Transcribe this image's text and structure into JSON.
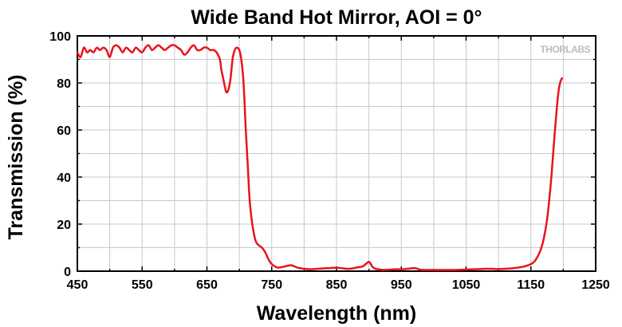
{
  "chart_data": {
    "type": "line",
    "title": "Wide Band Hot Mirror, AOI = 0°",
    "xlabel": "Wavelength (nm)",
    "ylabel": "Transmission (%)",
    "xlim": [
      450,
      1250
    ],
    "ylim": [
      0,
      100
    ],
    "xticks": [
      450,
      550,
      650,
      750,
      850,
      950,
      1050,
      1150,
      1250
    ],
    "yticks": [
      0,
      20,
      40,
      60,
      80,
      100
    ],
    "grid": true,
    "watermark": "THORLABS",
    "colors": {
      "line": "#e8141b",
      "grid": "#c8c8c8",
      "axis": "#000000"
    },
    "series": [
      {
        "x": [
          450,
          455,
          460,
          465,
          470,
          475,
          480,
          485,
          490,
          495,
          500,
          505,
          510,
          515,
          520,
          525,
          530,
          535,
          540,
          545,
          550,
          555,
          560,
          565,
          570,
          575,
          580,
          585,
          590,
          595,
          600,
          605,
          610,
          615,
          620,
          625,
          630,
          635,
          640,
          645,
          650,
          655,
          660,
          665,
          670,
          672,
          675,
          678,
          680,
          683,
          686,
          688,
          690,
          693,
          696,
          700,
          703,
          706,
          708,
          710,
          713,
          716,
          720,
          725,
          730,
          735,
          740,
          745,
          750,
          755,
          760,
          770,
          780,
          790,
          800,
          810,
          820,
          830,
          840,
          850,
          860,
          870,
          880,
          890,
          895,
          900,
          903,
          905,
          910,
          915,
          920,
          930,
          940,
          950,
          960,
          970,
          975,
          980,
          990,
          1000,
          1010,
          1020,
          1030,
          1040,
          1050,
          1060,
          1070,
          1080,
          1090,
          1100,
          1110,
          1120,
          1130,
          1140,
          1150,
          1155,
          1160,
          1165,
          1170,
          1175,
          1180,
          1183,
          1186,
          1189,
          1192,
          1195,
          1198
        ],
        "y": [
          93,
          91,
          95,
          93,
          94,
          93,
          95,
          94,
          95,
          94,
          91,
          95,
          96,
          95,
          93,
          95,
          94,
          93,
          95,
          94,
          93,
          95,
          96,
          94,
          95,
          96,
          95,
          94,
          95,
          96,
          96,
          95,
          94,
          92,
          93,
          95,
          96,
          94,
          94,
          95,
          95,
          94,
          94,
          93,
          90,
          86,
          82,
          78,
          76,
          77,
          81,
          86,
          91,
          94,
          95,
          94,
          90,
          82,
          72,
          60,
          45,
          30,
          20,
          13,
          11,
          10,
          8,
          5,
          3,
          2,
          1.5,
          2,
          2.5,
          1.5,
          1,
          0.8,
          1,
          1.2,
          1.3,
          1.5,
          1.2,
          1,
          1.5,
          2,
          3,
          4,
          3,
          2,
          1,
          0.8,
          0.6,
          0.6,
          0.8,
          0.8,
          1,
          1.3,
          1,
          0.6,
          0.5,
          0.5,
          0.5,
          0.5,
          0.5,
          0.6,
          0.7,
          0.8,
          0.9,
          1,
          1,
          0.9,
          1,
          1.2,
          1.5,
          2,
          3,
          4,
          6,
          9,
          14,
          22,
          35,
          45,
          56,
          66,
          75,
          80,
          82
        ]
      }
    ]
  }
}
